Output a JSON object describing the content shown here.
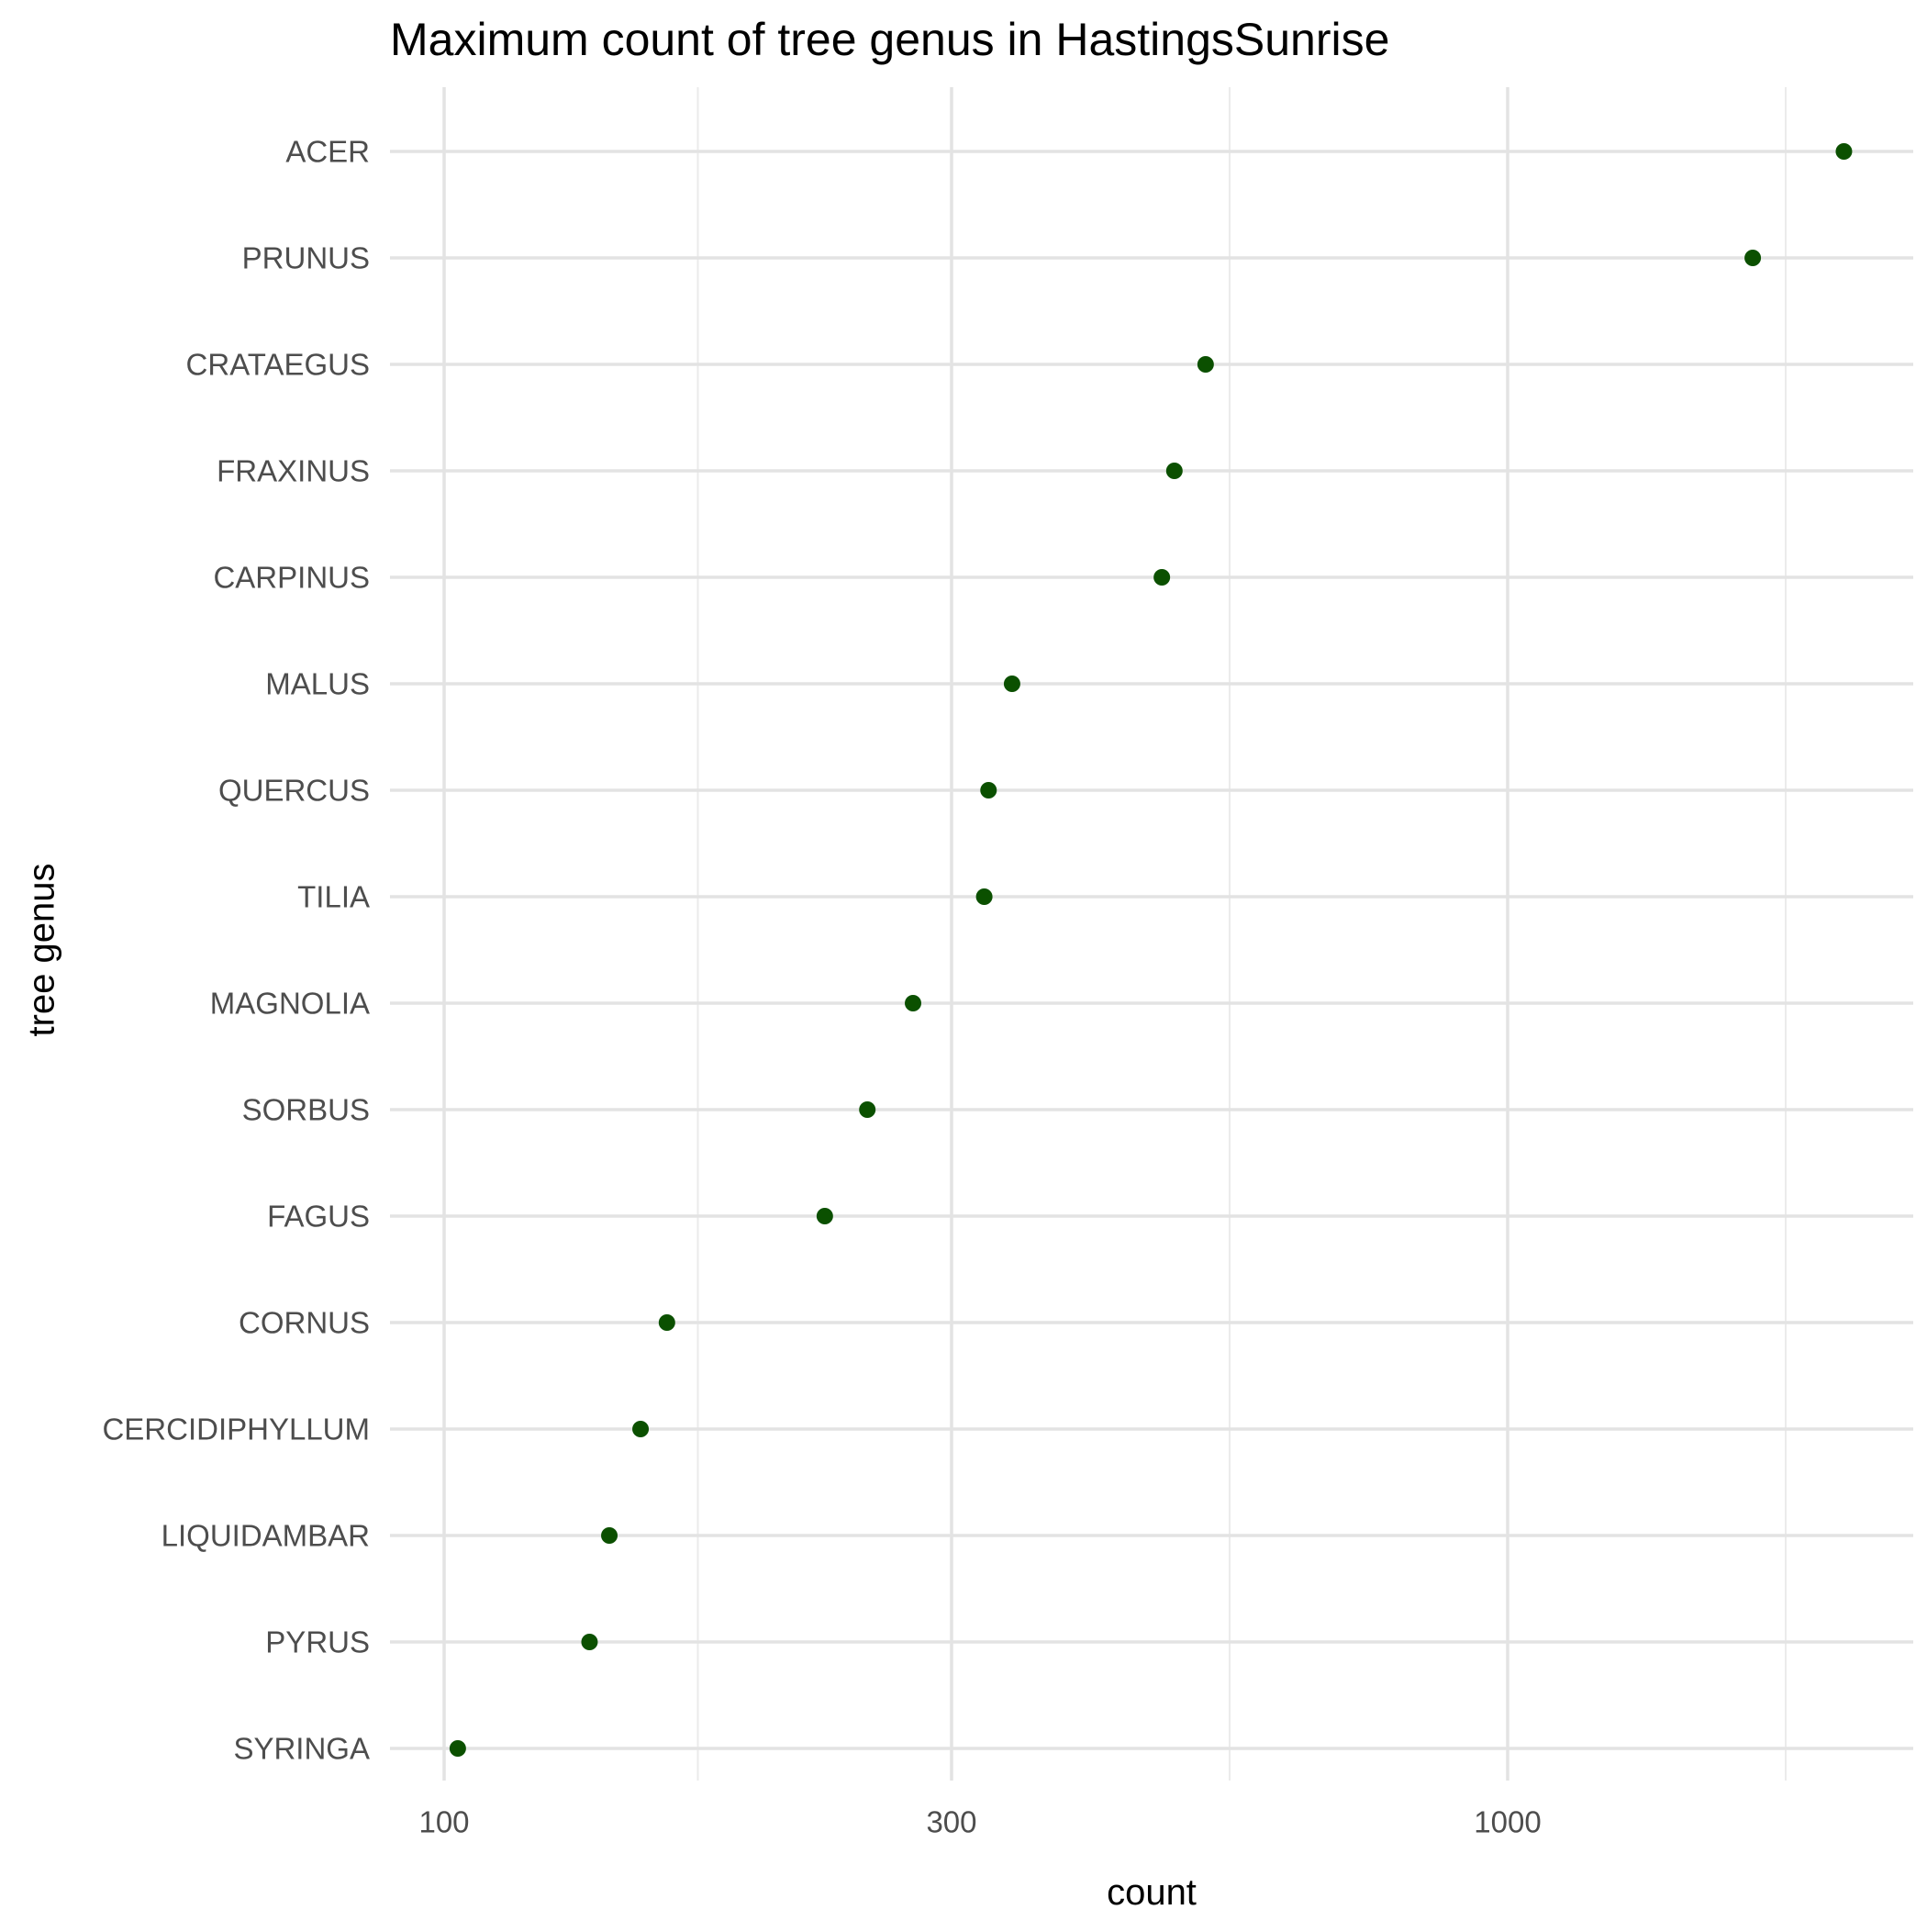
{
  "chart_data": {
    "type": "scatter",
    "title": "Maximum count of tree genus in HastingsSunrise",
    "xlabel": "count",
    "ylabel": "tree genus",
    "x_scale": "log10",
    "xlim": [
      100,
      2500
    ],
    "x_ticks": [
      100,
      300,
      1000
    ],
    "x_tick_labels": [
      "100",
      "300",
      "1000"
    ],
    "grid": true,
    "point_color": "#0b5000",
    "categories": [
      "ACER",
      "PRUNUS",
      "CRATAEGUS",
      "FRAXINUS",
      "CARPINUS",
      "MALUS",
      "QUERCUS",
      "TILIA",
      "MAGNOLIA",
      "SORBUS",
      "FAGUS",
      "CORNUS",
      "CERCIDIPHYLLUM",
      "LIQUIDAMBAR",
      "PYRUS",
      "SYRINGA"
    ],
    "values": [
      2071,
      1700,
      520,
      486,
      473,
      342,
      325,
      322,
      276,
      250,
      228,
      162,
      153,
      143,
      137,
      103
    ]
  }
}
